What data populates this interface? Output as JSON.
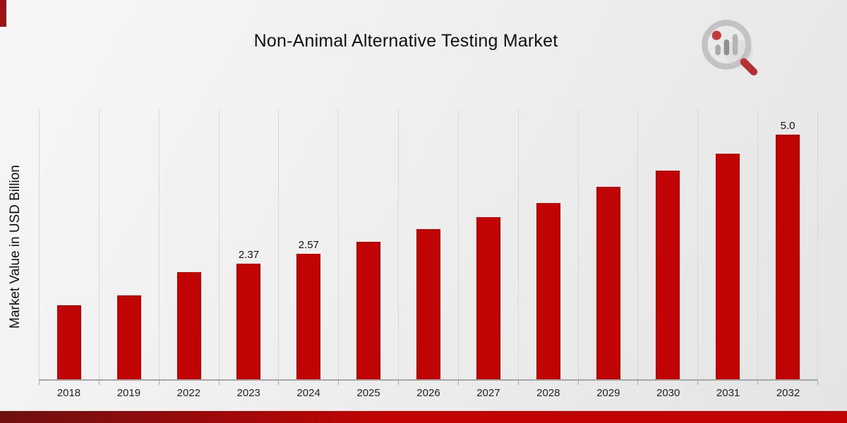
{
  "page": {
    "title": "Non-Animal Alternative Testing Market",
    "y_axis_label": "Market Value in USD Billion"
  },
  "chart_data": {
    "type": "bar",
    "title": "Non-Animal Alternative Testing Market",
    "xlabel": "",
    "ylabel": "Market Value in USD Billion",
    "categories": [
      "2018",
      "2019",
      "2022",
      "2023",
      "2024",
      "2025",
      "2026",
      "2027",
      "2028",
      "2029",
      "2030",
      "2031",
      "2032"
    ],
    "values": [
      1.52,
      1.71,
      2.19,
      2.37,
      2.57,
      2.81,
      3.07,
      3.32,
      3.6,
      3.93,
      4.27,
      4.62,
      5.0
    ],
    "data_labels": [
      null,
      null,
      null,
      "2.37",
      "2.57",
      null,
      null,
      null,
      null,
      null,
      null,
      null,
      "5.0"
    ],
    "ylim": [
      0,
      5.55
    ],
    "grid": "vertical-gridlines",
    "legend": "none",
    "series_name": "Market Value in USD Billion",
    "bar_color": "#c00404"
  },
  "colors": {
    "bar": "#c00404",
    "band_dark": "#6f1010",
    "band_red": "#c00404",
    "accent": "#9e1212",
    "gridline": "#d9d9d9",
    "axis": "#a6a6a6",
    "background_start": "#f7f7f7",
    "background_end": "#e4e4e4"
  },
  "logo": {
    "name": "market-research-magnifier-logo"
  }
}
